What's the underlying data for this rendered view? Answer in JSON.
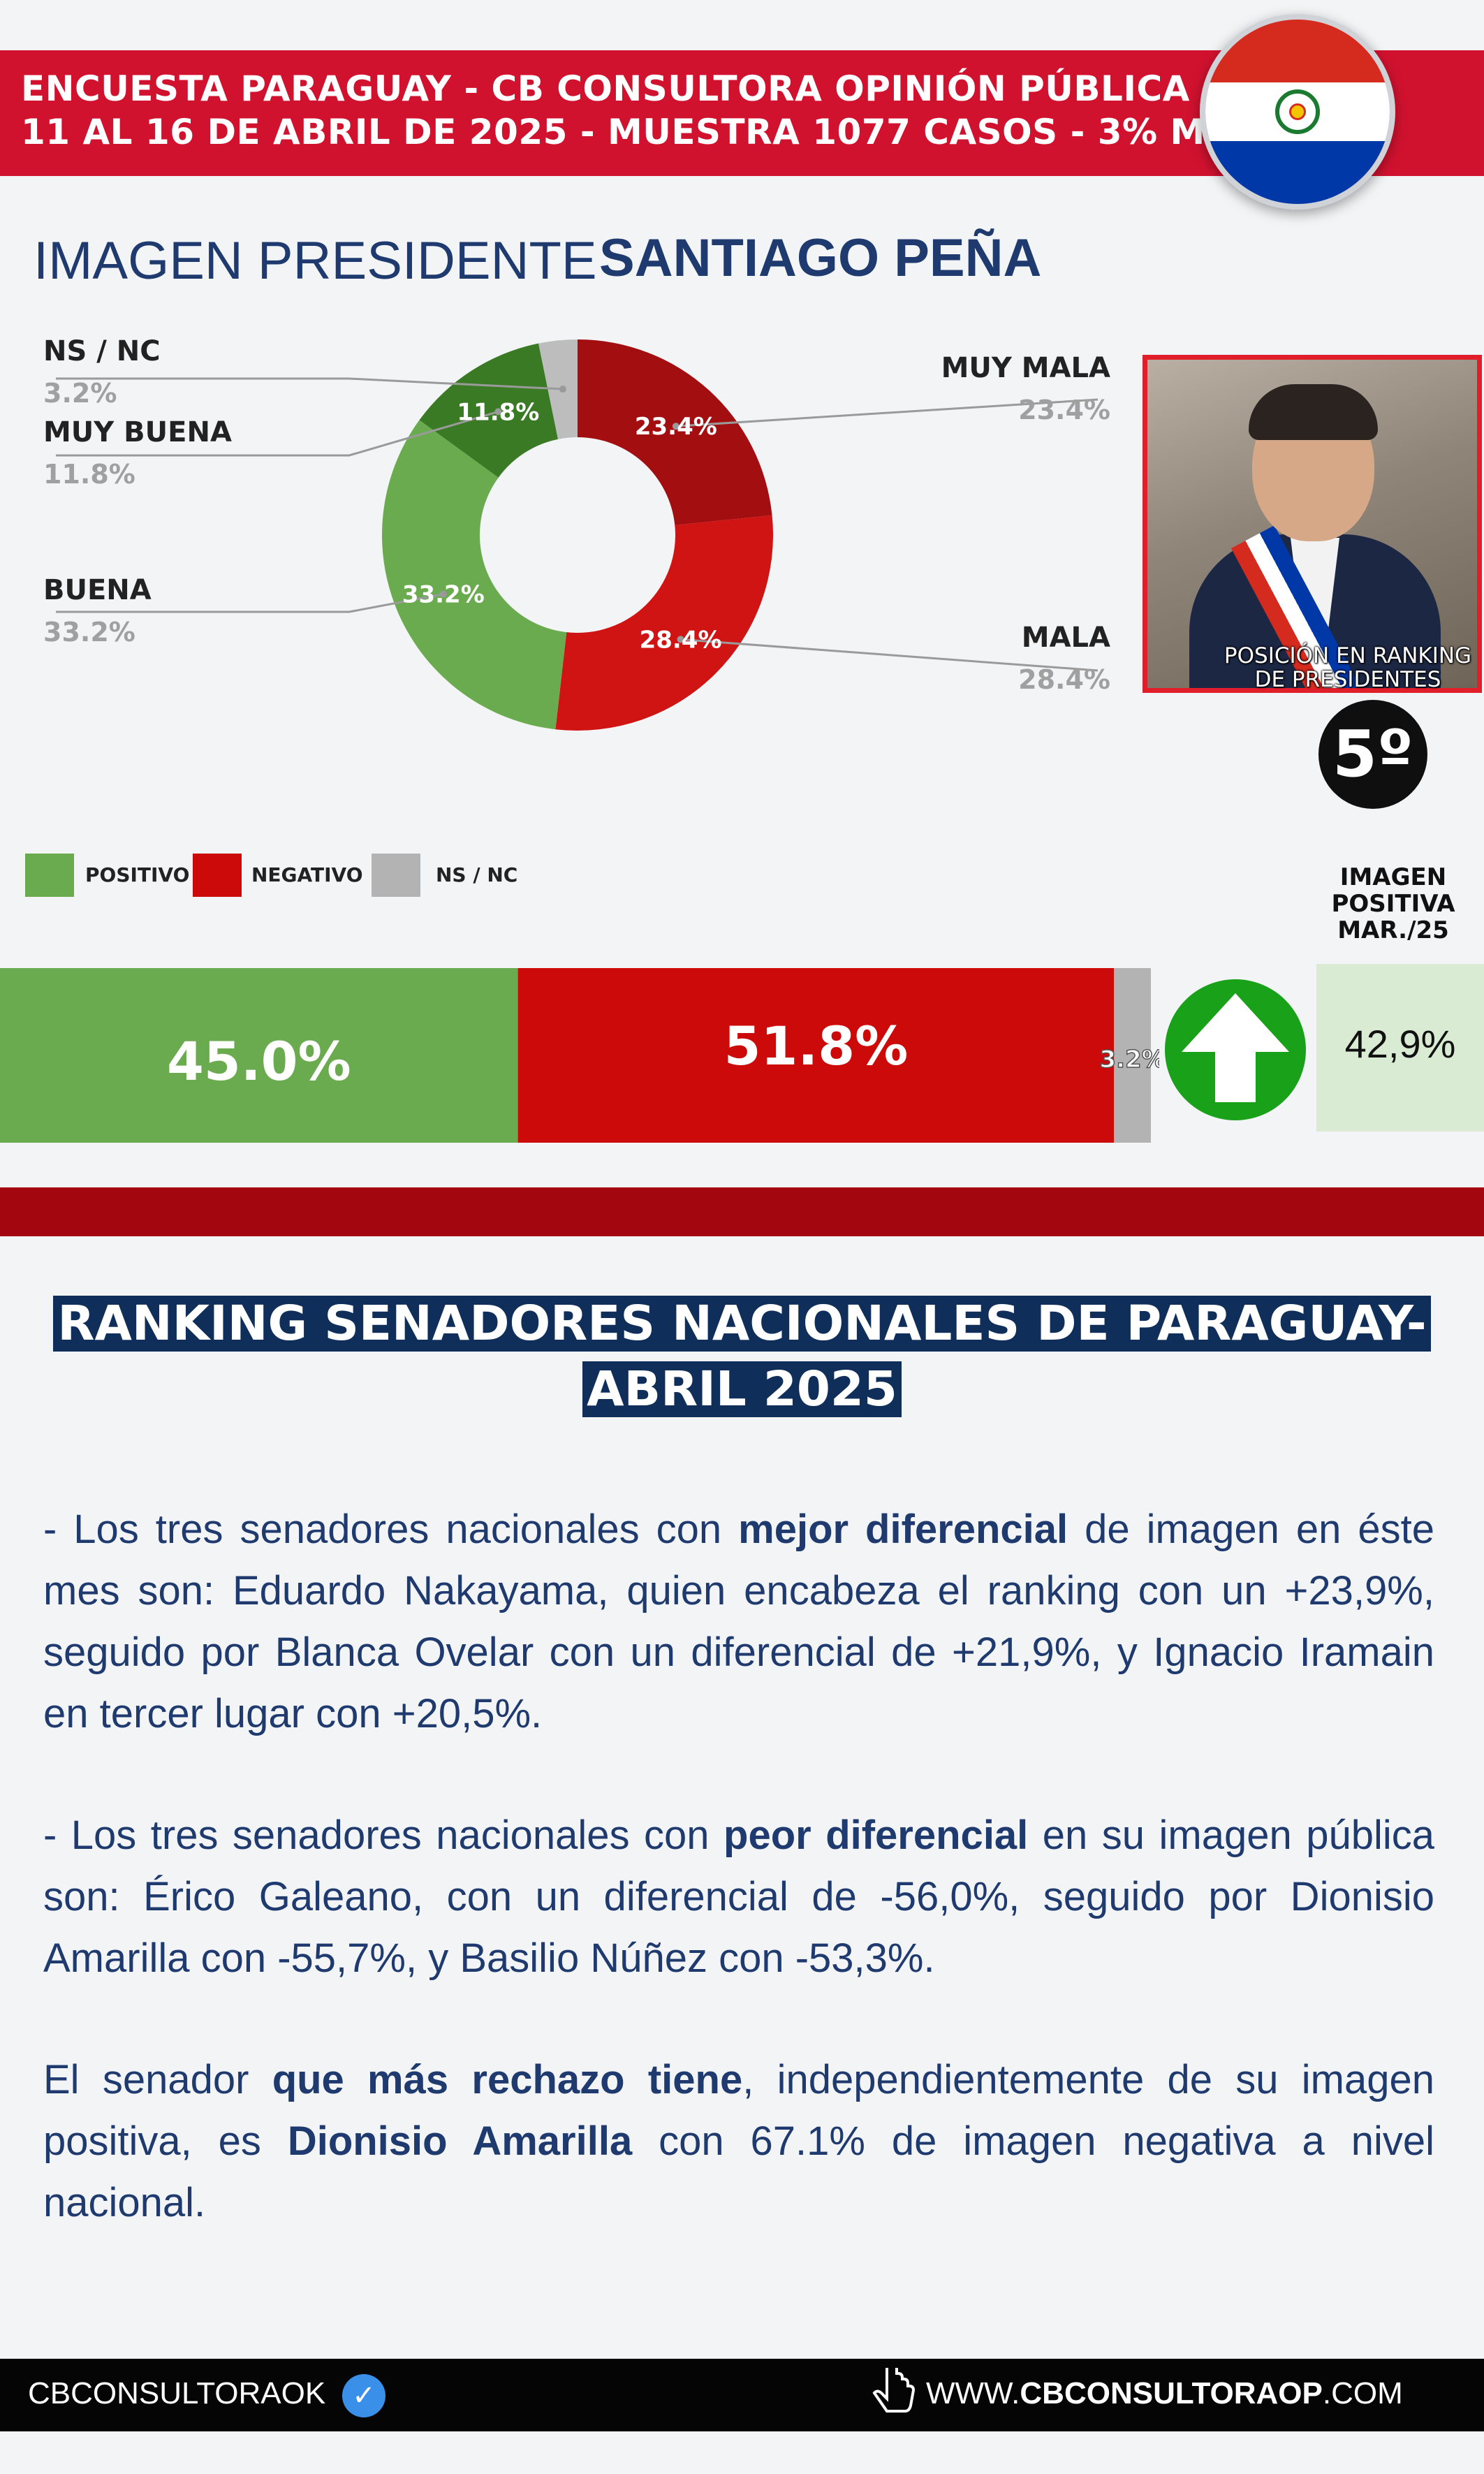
{
  "header": {
    "line1": "ENCUESTA PARAGUAY - CB CONSULTORA OPINIÓN PÚBLICA",
    "line2": "11 AL 16 DE ABRIL DE 2025 - MUESTRA 1077 CASOS  - 3% M.E.",
    "flag_colors": [
      "#d52b1e",
      "#ffffff",
      "#0038a8"
    ]
  },
  "title": {
    "prefix": "IMAGEN PRESIDENTE",
    "name": "SANTIAGO PEÑA"
  },
  "chart_data": [
    {
      "type": "pie",
      "variant": "donut",
      "slices": [
        {
          "name": "MUY MALA",
          "value": 23.4,
          "label": "23.4%",
          "legend_value": "23.4%",
          "color": "#a30f10"
        },
        {
          "name": "MALA",
          "value": 28.4,
          "label": "28.4%",
          "legend_value": "28.4%",
          "color": "#d01414"
        },
        {
          "name": "BUENA",
          "value": 33.2,
          "label": "33.2%",
          "legend_value": "33.2%",
          "color": "#6aab4f"
        },
        {
          "name": "MUY BUENA",
          "value": 11.8,
          "label": "11.8%",
          "legend_value": "11.8%",
          "color": "#3a7a24"
        },
        {
          "name": "NS / NC",
          "value": 3.2,
          "label": "",
          "legend_value": "3.2%",
          "color": "#bdbdbd"
        }
      ]
    },
    {
      "type": "bar",
      "variant": "stacked-horizontal",
      "legend": [
        {
          "name": "POSITIVO",
          "color": "#6aab4f"
        },
        {
          "name": "NEGATIVO",
          "color": "#cc0a0a"
        },
        {
          "name": "NS / NC",
          "color": "#b3b3b3"
        }
      ],
      "series": [
        {
          "name": "POSITIVO",
          "value": 45.0,
          "label": "45.0%",
          "color": "#6aab4f"
        },
        {
          "name": "NEGATIVO",
          "value": 51.8,
          "label": "51.8%",
          "color": "#cc0a0a"
        },
        {
          "name": "NS / NC",
          "value": 3.2,
          "label": "3.2%",
          "color": "#b3b3b3"
        }
      ]
    }
  ],
  "ranking_position": {
    "caption": "POSICIÓN EN RANKING DE PRESIDENTES",
    "value": "5º"
  },
  "comparison": {
    "label": "IMAGEN POSITIVA MAR./25",
    "value": "42,9%",
    "trend": "up"
  },
  "ranking_section": {
    "title": "RANKING SENADORES NACIONALES DE PARAGUAY- ABRIL 2025",
    "paragraphs": [
      {
        "before": "- Los tres senadores nacionales con ",
        "bold": "mejor diferencial",
        "after": " de imagen en éste mes son: Eduardo Nakayama, quien encabeza el ranking con un +23,9%, seguido por Blanca Ovelar con un diferencial de +21,9%, y Ignacio Iramain en tercer lugar con +20,5%."
      },
      {
        "before": "- Los tres senadores nacionales con ",
        "bold": "peor diferencial",
        "after": " en su imagen pública son: Érico Galeano, con un diferencial de -56,0%, seguido por Dionisio Amarilla con -55,7%, y Basilio Núñez con -53,3%."
      },
      {
        "before": "El senador ",
        "bold": "que más rechazo tiene",
        "middle": ", independientemente de su imagen positiva, es ",
        "bold2": "Dionisio Amarilla",
        "after": " con 67.1% de imagen negativa a nivel nacional."
      }
    ]
  },
  "footer": {
    "handle": "CBCONSULTORAOK",
    "website_prefix": "WWW.",
    "website_bold": "CBCONSULTORAOP",
    "website_suffix": ".COM",
    "verified_icon": "verified-check-icon",
    "pointer_icon": "pointer-hand-icon"
  }
}
